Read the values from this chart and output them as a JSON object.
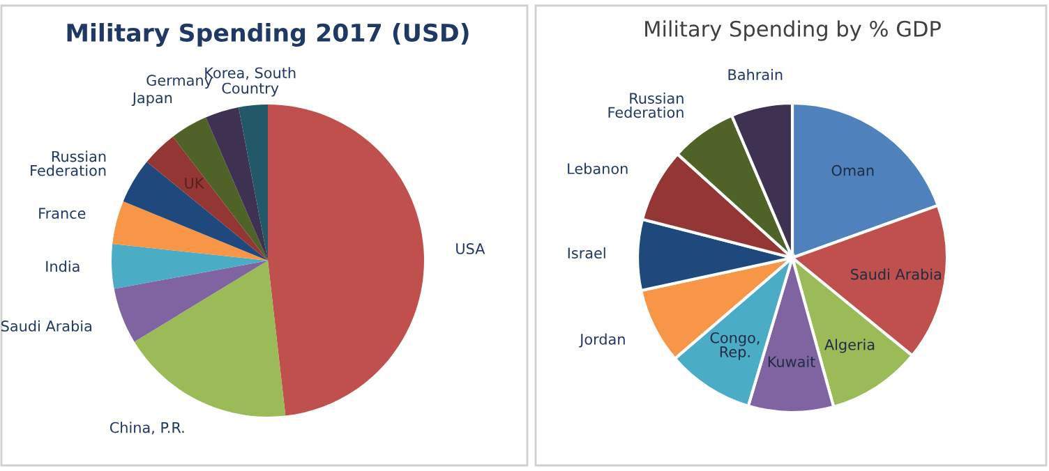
{
  "chart_data": [
    {
      "type": "pie",
      "title": "Military Spending 2017 (USD)",
      "categories": [
        "Country",
        "USA",
        "China, P.R.",
        "Saudi Arabia",
        "India",
        "France",
        "Russian Federation",
        "UK",
        "Japan",
        "Germany",
        "Korea, South"
      ],
      "values": [
        0,
        48.2,
        18.1,
        5.8,
        4.6,
        4.5,
        4.7,
        3.7,
        3.9,
        3.5,
        3.0
      ],
      "colors": [
        "#4f81bd",
        "#c0504d",
        "#9bbb59",
        "#8064a2",
        "#4bacc6",
        "#f79646",
        "#1f497d",
        "#943634",
        "#4f6228",
        "#3f3151",
        "#215968"
      ]
    },
    {
      "type": "pie",
      "title": "Military Spending by % GDP",
      "categories": [
        "Oman",
        "Saudi Arabia",
        "Algeria",
        "Kuwait",
        "Congo, Rep.",
        "Jordan",
        "Israel",
        "Lebanon",
        "Russian Federation",
        "Bahrain"
      ],
      "values": [
        19.5,
        16.4,
        9.8,
        8.9,
        9.1,
        7.9,
        7.4,
        7.7,
        6.9,
        6.4
      ],
      "colors": [
        "#4f81bd",
        "#c0504d",
        "#9bbb59",
        "#8064a2",
        "#4bacc6",
        "#f79646",
        "#1f497d",
        "#943634",
        "#4f6228",
        "#3f3151"
      ]
    }
  ]
}
